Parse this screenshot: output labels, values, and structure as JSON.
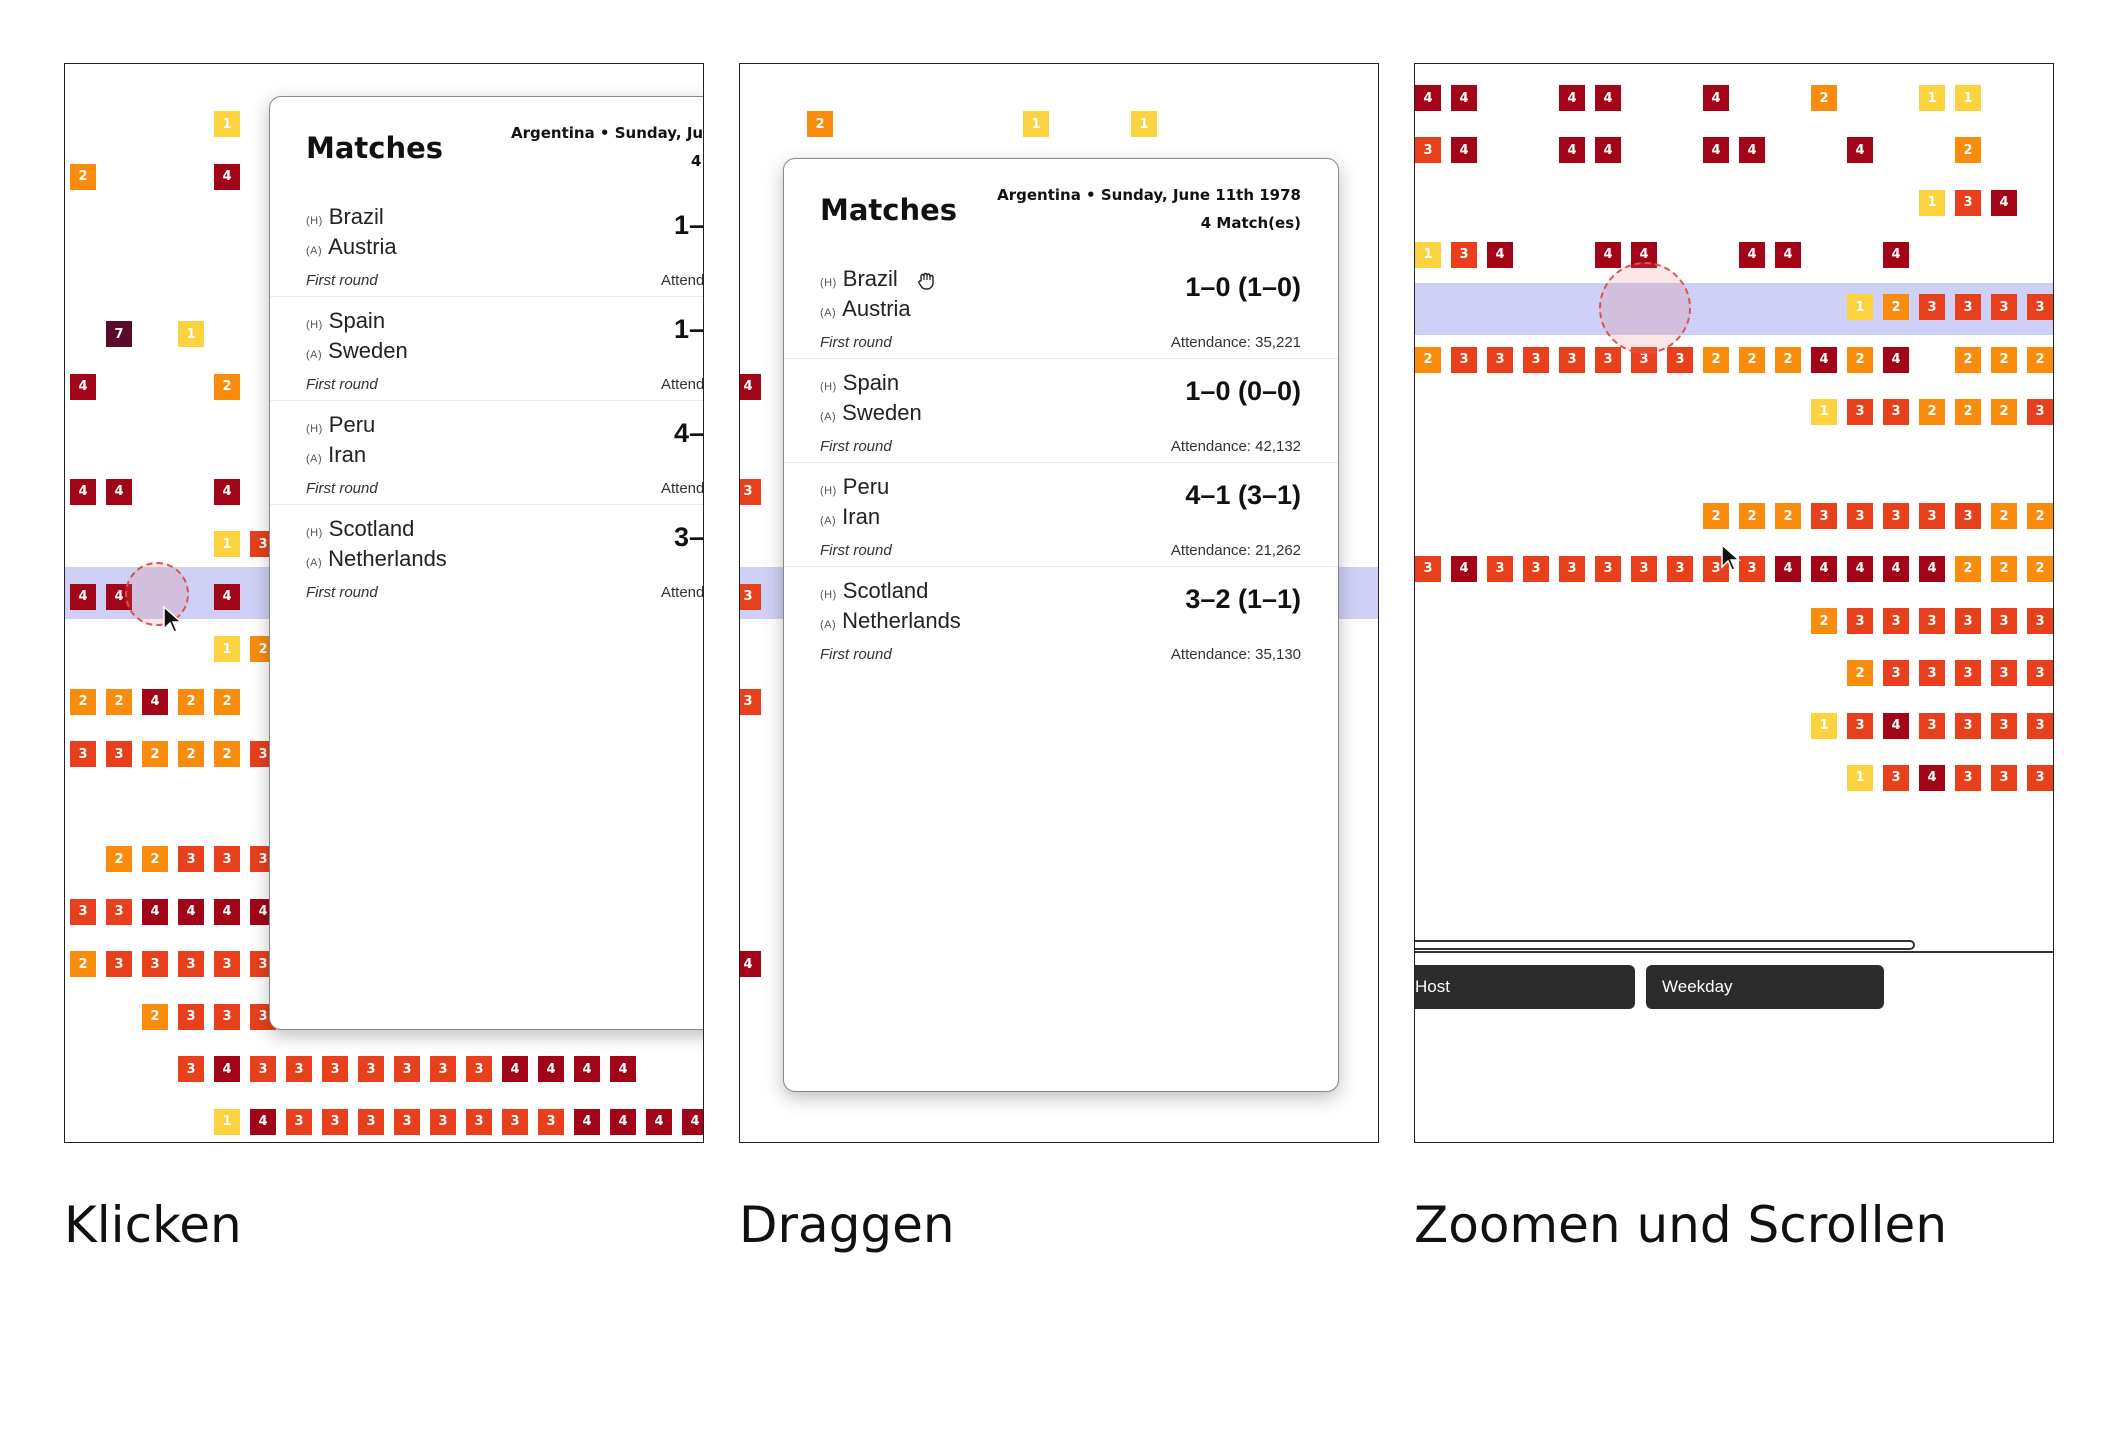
{
  "colors": {
    "c1": "#fcd33f",
    "c2": "#fa8c0d",
    "c3": "#e83f1c",
    "c4": "#a10517",
    "c7": "#5c0a2b",
    "highlight": "#cfd0f5"
  },
  "captions": {
    "click": "Klicken",
    "drag": "Draggen",
    "zoom": "Zoomen und Scrollen"
  },
  "popup": {
    "title": "Matches",
    "location_date": "Argentina • Sunday, June 11th 1978",
    "match_count": "4 Match(es)",
    "home_tag": "(H)",
    "away_tag": "(A)",
    "matches": [
      {
        "home": "Brazil",
        "away": "Austria",
        "score": "1–0 (1–0)",
        "round": "First round",
        "attendance": "Attendance: 35,221"
      },
      {
        "home": "Spain",
        "away": "Sweden",
        "score": "1–0 (0–0)",
        "round": "First round",
        "attendance": "Attendance: 42,132"
      },
      {
        "home": "Peru",
        "away": "Iran",
        "score": "4–1 (3–1)",
        "round": "First round",
        "attendance": "Attendance: 21,262"
      },
      {
        "home": "Scotland",
        "away": "Netherlands",
        "score": "3–2 (1–1)",
        "round": "First round",
        "attendance": "Attendance: 35,130"
      }
    ]
  },
  "popup_clipped": {
    "location_date": "Argentina • Sunday, June",
    "match_count": "4",
    "scores": [
      "1–",
      "1–",
      "4–",
      "3–"
    ],
    "attendance": "Attend"
  },
  "filters": {
    "host_label": "Host",
    "weekday_label": "Weekday"
  },
  "grids": {
    "click": [
      "....1..........",
      "2...4..1.......",
      "...............",
      "...............",
      ".7.1...........",
      "4...2..........",
      "...............",
      "44..4..........",
      "....13.........",
      "44..4..........",
      "....12.........",
      "22422..........",
      "33222333.......",
      "...............",
      ".22333.........",
      "334444.........",
      "233333.........",
      "..2333.........",
      "...3433333334444",
      "....14333333334444"
    ],
    "drag": [
      "..2.....1..1.............",
      "..................2......",
      "...............",
      "..................4......",
      "..................4......",
      "4.4...............4......",
      "...............",
      "3.4...............4......",
      "...............",
      "3.4...............4......",
      "..................3......",
      "3.3...............",
      "...............",
      "..................4......",
      "..................3......",
      "..................2......",
      "4.3...............",
      "..................3......",
      "..................3......",
      "..................3......",
      ".............1343333"
    ],
    "zoom": [
      "44..44..4..2..11....",
      "34..44..44..4..2....",
      "..............134..4",
      "134..44..44..4.....4",
      "............12333333",
      "23333333222424.22222",
      "...........133222323",
      "..................23",
      "........222333332222",
      "34333333334444422222",
      "...........233333333",
      "............23333333",
      "...........134333333",
      "............13433333"
    ]
  }
}
